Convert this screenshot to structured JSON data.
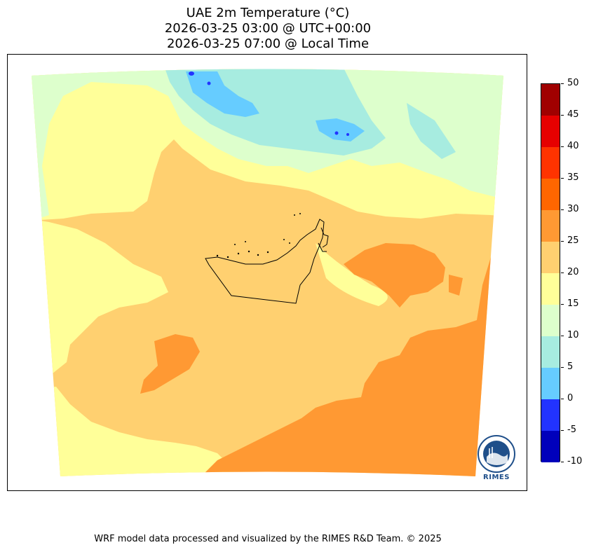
{
  "title": {
    "line1": "UAE 2m Temperature (°C)",
    "line2": "2026-03-25 03:00 @ UTC+00:00",
    "line3": "2026-03-25 07:00 @ Local Time"
  },
  "colorbar": {
    "levels": [
      "50",
      "45",
      "40",
      "35",
      "30",
      "25",
      "20",
      "15",
      "10",
      "5",
      "0",
      "-5",
      "-10"
    ],
    "colors": [
      "#a00000",
      "#e60000",
      "#ff3300",
      "#ff6600",
      "#ff9933",
      "#ffd070",
      "#ffff99",
      "#ddffcc",
      "#a7ece0",
      "#66ccff",
      "#2233ff",
      "#0000bb"
    ]
  },
  "field_colors": {
    "cold_deep": "#0000bb",
    "c5": "#66ccff",
    "c10": "#a7ece0",
    "c15": "#ddffcc",
    "c20": "#ffff99",
    "c25": "#ffd070",
    "c30": "#ff9933"
  },
  "logo": {
    "text": "RIMES",
    "color": "#1f4f8a"
  },
  "footer": "WRF model data processed and visualized by the RIMES R&D Team. © 2025"
}
